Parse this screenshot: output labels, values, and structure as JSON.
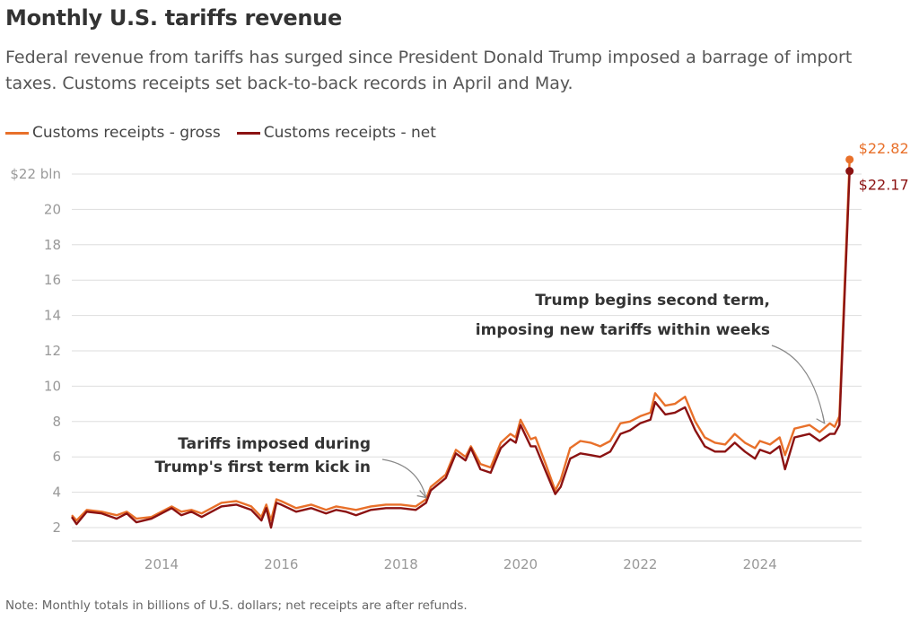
{
  "title": "Monthly U.S. tariffs revenue",
  "subtitle": "Federal revenue from tariffs has surged since President Donald Trump imposed a barrage of import taxes. Customs receipts set back-to-back records in April and May.",
  "note": "Note: Monthly totals in billions of U.S. dollars; net receipts are after refunds.",
  "colors": {
    "gross": "#e8702a",
    "net": "#8b1212"
  },
  "chart_data": {
    "type": "line",
    "title": "Monthly U.S. tariffs revenue",
    "ylabel": "",
    "ylim": [
      2,
      22
    ],
    "y_ticks": [
      2,
      4,
      6,
      8,
      10,
      12,
      14,
      16,
      18,
      20,
      22
    ],
    "y_tick_labels": [
      "2",
      "4",
      "6",
      "8",
      "10",
      "12",
      "14",
      "16",
      "18",
      "20",
      "$22 bln"
    ],
    "x_ticks": [
      2014,
      2016,
      2018,
      2020,
      2022,
      2024
    ],
    "x_tick_labels": [
      "2014",
      "2016",
      "2018",
      "2020",
      "2022",
      "2024"
    ],
    "grid": "horizontal",
    "legend_position": "top-left",
    "series": [
      {
        "name": "Customs receipts - gross",
        "points": [
          [
            2012.5,
            2.7
          ],
          [
            2012.58,
            2.4
          ],
          [
            2012.75,
            3.0
          ],
          [
            2013.0,
            2.9
          ],
          [
            2013.25,
            2.7
          ],
          [
            2013.42,
            2.9
          ],
          [
            2013.58,
            2.5
          ],
          [
            2013.83,
            2.6
          ],
          [
            2014.0,
            2.9
          ],
          [
            2014.17,
            3.2
          ],
          [
            2014.33,
            2.9
          ],
          [
            2014.5,
            3.0
          ],
          [
            2014.67,
            2.8
          ],
          [
            2015.0,
            3.4
          ],
          [
            2015.25,
            3.5
          ],
          [
            2015.5,
            3.2
          ],
          [
            2015.67,
            2.6
          ],
          [
            2015.75,
            3.3
          ],
          [
            2015.83,
            2.4
          ],
          [
            2015.92,
            3.6
          ],
          [
            2016.0,
            3.5
          ],
          [
            2016.25,
            3.1
          ],
          [
            2016.5,
            3.3
          ],
          [
            2016.75,
            3.0
          ],
          [
            2016.92,
            3.2
          ],
          [
            2017.08,
            3.1
          ],
          [
            2017.25,
            3.0
          ],
          [
            2017.5,
            3.2
          ],
          [
            2017.75,
            3.3
          ],
          [
            2018.0,
            3.3
          ],
          [
            2018.25,
            3.2
          ],
          [
            2018.42,
            3.6
          ],
          [
            2018.5,
            4.3
          ],
          [
            2018.75,
            5.0
          ],
          [
            2018.92,
            6.4
          ],
          [
            2019.08,
            6.0
          ],
          [
            2019.17,
            6.6
          ],
          [
            2019.33,
            5.6
          ],
          [
            2019.5,
            5.4
          ],
          [
            2019.67,
            6.8
          ],
          [
            2019.83,
            7.3
          ],
          [
            2019.92,
            7.1
          ],
          [
            2020.0,
            8.1
          ],
          [
            2020.17,
            7.0
          ],
          [
            2020.25,
            7.1
          ],
          [
            2020.42,
            5.6
          ],
          [
            2020.58,
            4.1
          ],
          [
            2020.67,
            4.7
          ],
          [
            2020.83,
            6.5
          ],
          [
            2021.0,
            6.9
          ],
          [
            2021.17,
            6.8
          ],
          [
            2021.33,
            6.6
          ],
          [
            2021.5,
            6.9
          ],
          [
            2021.67,
            7.9
          ],
          [
            2021.83,
            8.0
          ],
          [
            2022.0,
            8.3
          ],
          [
            2022.17,
            8.5
          ],
          [
            2022.25,
            9.6
          ],
          [
            2022.42,
            8.9
          ],
          [
            2022.58,
            9.0
          ],
          [
            2022.75,
            9.4
          ],
          [
            2022.92,
            8.0
          ],
          [
            2023.08,
            7.1
          ],
          [
            2023.25,
            6.8
          ],
          [
            2023.42,
            6.7
          ],
          [
            2023.58,
            7.3
          ],
          [
            2023.75,
            6.8
          ],
          [
            2023.92,
            6.5
          ],
          [
            2024.0,
            6.9
          ],
          [
            2024.17,
            6.7
          ],
          [
            2024.33,
            7.1
          ],
          [
            2024.42,
            6.1
          ],
          [
            2024.58,
            7.6
          ],
          [
            2024.83,
            7.8
          ],
          [
            2025.0,
            7.4
          ],
          [
            2025.17,
            7.9
          ],
          [
            2025.25,
            7.7
          ],
          [
            2025.33,
            8.3
          ],
          [
            2025.5,
            22.82
          ]
        ]
      },
      {
        "name": "Customs receipts - net",
        "points": [
          [
            2012.5,
            2.6
          ],
          [
            2012.58,
            2.2
          ],
          [
            2012.75,
            2.9
          ],
          [
            2013.0,
            2.8
          ],
          [
            2013.25,
            2.5
          ],
          [
            2013.42,
            2.8
          ],
          [
            2013.58,
            2.3
          ],
          [
            2013.83,
            2.5
          ],
          [
            2014.0,
            2.8
          ],
          [
            2014.17,
            3.1
          ],
          [
            2014.33,
            2.7
          ],
          [
            2014.5,
            2.9
          ],
          [
            2014.67,
            2.6
          ],
          [
            2015.0,
            3.2
          ],
          [
            2015.25,
            3.3
          ],
          [
            2015.5,
            3.0
          ],
          [
            2015.67,
            2.4
          ],
          [
            2015.75,
            3.1
          ],
          [
            2015.83,
            2.0
          ],
          [
            2015.92,
            3.4
          ],
          [
            2016.0,
            3.3
          ],
          [
            2016.25,
            2.9
          ],
          [
            2016.5,
            3.1
          ],
          [
            2016.75,
            2.8
          ],
          [
            2016.92,
            3.0
          ],
          [
            2017.08,
            2.9
          ],
          [
            2017.25,
            2.7
          ],
          [
            2017.5,
            3.0
          ],
          [
            2017.75,
            3.1
          ],
          [
            2018.0,
            3.1
          ],
          [
            2018.25,
            3.0
          ],
          [
            2018.42,
            3.4
          ],
          [
            2018.5,
            4.1
          ],
          [
            2018.75,
            4.8
          ],
          [
            2018.92,
            6.2
          ],
          [
            2019.08,
            5.8
          ],
          [
            2019.17,
            6.5
          ],
          [
            2019.33,
            5.3
          ],
          [
            2019.5,
            5.1
          ],
          [
            2019.67,
            6.5
          ],
          [
            2019.83,
            7.0
          ],
          [
            2019.92,
            6.8
          ],
          [
            2020.0,
            7.8
          ],
          [
            2020.17,
            6.6
          ],
          [
            2020.25,
            6.6
          ],
          [
            2020.42,
            5.2
          ],
          [
            2020.58,
            3.9
          ],
          [
            2020.67,
            4.3
          ],
          [
            2020.83,
            5.9
          ],
          [
            2021.0,
            6.2
          ],
          [
            2021.17,
            6.1
          ],
          [
            2021.33,
            6.0
          ],
          [
            2021.5,
            6.3
          ],
          [
            2021.67,
            7.3
          ],
          [
            2021.83,
            7.5
          ],
          [
            2022.0,
            7.9
          ],
          [
            2022.17,
            8.1
          ],
          [
            2022.25,
            9.1
          ],
          [
            2022.42,
            8.4
          ],
          [
            2022.58,
            8.5
          ],
          [
            2022.75,
            8.8
          ],
          [
            2022.92,
            7.5
          ],
          [
            2023.08,
            6.6
          ],
          [
            2023.25,
            6.3
          ],
          [
            2023.42,
            6.3
          ],
          [
            2023.58,
            6.8
          ],
          [
            2023.75,
            6.3
          ],
          [
            2023.92,
            5.9
          ],
          [
            2024.0,
            6.4
          ],
          [
            2024.17,
            6.2
          ],
          [
            2024.33,
            6.6
          ],
          [
            2024.42,
            5.3
          ],
          [
            2024.58,
            7.1
          ],
          [
            2024.83,
            7.3
          ],
          [
            2025.0,
            6.9
          ],
          [
            2025.17,
            7.3
          ],
          [
            2025.25,
            7.3
          ],
          [
            2025.33,
            7.8
          ],
          [
            2025.5,
            22.17
          ]
        ]
      }
    ],
    "end_labels": {
      "gross": "$22.82",
      "net": "$22.17"
    },
    "annotations": [
      {
        "lines": [
          "Tariffs imposed during",
          "Trump's first term kick in"
        ],
        "target_x": 2018.42,
        "target_y": 3.7
      },
      {
        "lines": [
          "Trump begins second term,",
          "imposing new tariffs within weeks"
        ],
        "target_x": 2025.08,
        "target_y": 7.9
      }
    ]
  }
}
